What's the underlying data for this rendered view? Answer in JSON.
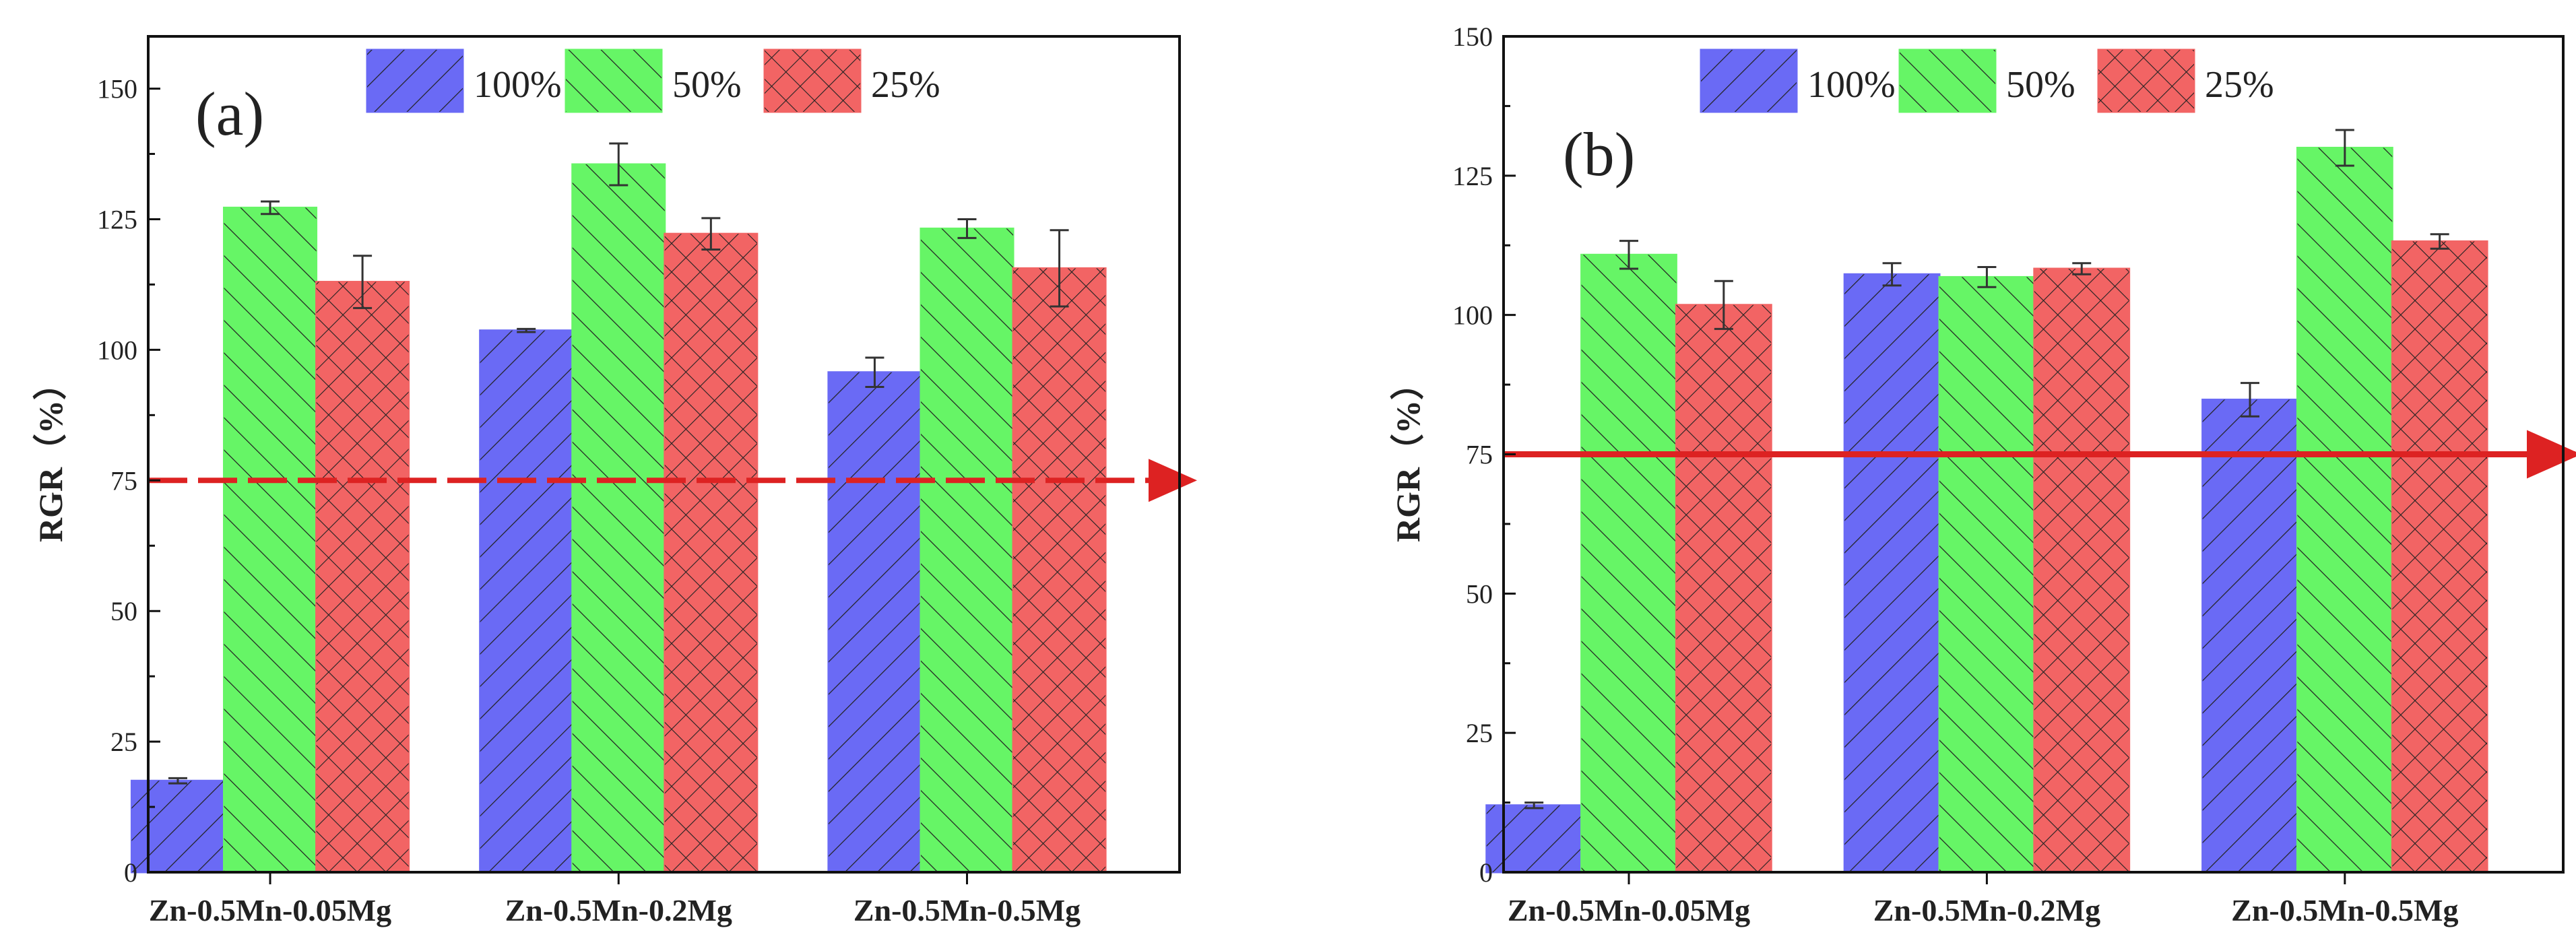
{
  "chart_data": [
    {
      "type": "bar",
      "panel_label": "(a)",
      "ylabel": "RGR（%）",
      "xlabel": "",
      "ylim": [
        0,
        160
      ],
      "yticks": [
        0,
        25,
        50,
        75,
        100,
        125,
        150
      ],
      "categories": [
        "Zn-0.5Mn-0.05Mg",
        "Zn-0.5Mn-0.2Mg",
        "Zn-0.5Mn-0.5Mg"
      ],
      "series": [
        {
          "name": "100%",
          "color": "#6a6af5",
          "values": [
            17.5,
            103.7,
            95.7
          ],
          "errors": [
            0.5,
            0.3,
            2.8
          ]
        },
        {
          "name": "50%",
          "color": "#66f566",
          "values": [
            127.2,
            135.5,
            123.2
          ],
          "errors": [
            1.2,
            4.0,
            1.8
          ]
        },
        {
          "name": "25%",
          "color": "#f26464",
          "values": [
            113.0,
            122.2,
            115.6
          ],
          "errors": [
            5.0,
            3.0,
            7.3
          ]
        }
      ],
      "reference_line": {
        "value": 75,
        "style": "dashed",
        "color": "#dd2222"
      },
      "legend": "top-center",
      "grid": false
    },
    {
      "type": "bar",
      "panel_label": "(b)",
      "ylabel": "RGR（%）",
      "xlabel": "",
      "ylim": [
        0,
        150
      ],
      "yticks": [
        0,
        25,
        50,
        75,
        100,
        125,
        150
      ],
      "categories": [
        "Zn-0.5Mn-0.05Mg",
        "Zn-0.5Mn-0.2Mg",
        "Zn-0.5Mn-0.5Mg"
      ],
      "series": [
        {
          "name": "100%",
          "color": "#6a6af5",
          "values": [
            12.0,
            107.3,
            84.8
          ],
          "errors": [
            0.5,
            2.0,
            3.0
          ]
        },
        {
          "name": "50%",
          "color": "#66f566",
          "values": [
            110.8,
            106.8,
            130.0
          ],
          "errors": [
            2.5,
            1.8,
            3.2
          ]
        },
        {
          "name": "25%",
          "color": "#f26464",
          "values": [
            101.8,
            108.3,
            113.2
          ],
          "errors": [
            4.3,
            1.0,
            1.3
          ]
        }
      ],
      "reference_line": {
        "value": 75,
        "style": "solid",
        "color": "#dd2222"
      },
      "legend": "top-center",
      "grid": false
    }
  ]
}
